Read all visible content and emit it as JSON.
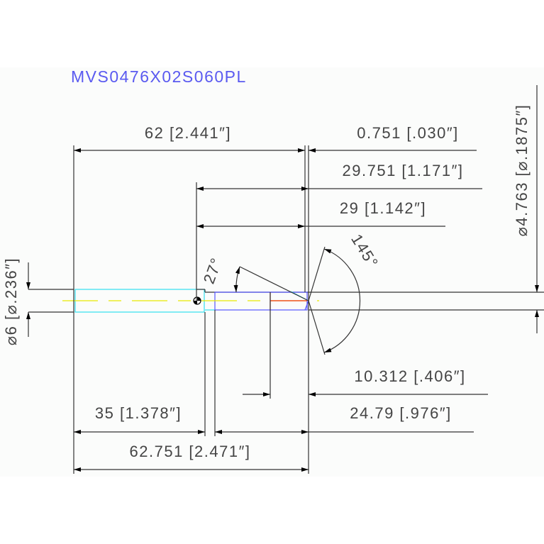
{
  "title": "MVS0476X02S060PL",
  "dimensions": {
    "overall_length_62": "62 [2.441″]",
    "tip_0751": "0.751 [.030″]",
    "len_29751": "29.751 [1.171″]",
    "len_29": "29 [1.142″]",
    "tip_angle": "145°",
    "relief_angle": "27°",
    "tip_diameter": "⌀4.763 [⌀.1875″]",
    "shank_diameter": "⌀6 [⌀.236″]",
    "len_10312": "10.312 [.406″]",
    "len_2479": "24.79 [.976″]",
    "shank_length": "35 [1.378″]",
    "overall_length_62751": "62.751 [2.471″]"
  },
  "colors": {
    "title": "#5a5af0",
    "centerline": "#e8e800",
    "shank_outline": "#33e0f0",
    "neck_outline": "#5555ff",
    "cut_edge": "#ee3311",
    "background": "#fbfcfb"
  }
}
